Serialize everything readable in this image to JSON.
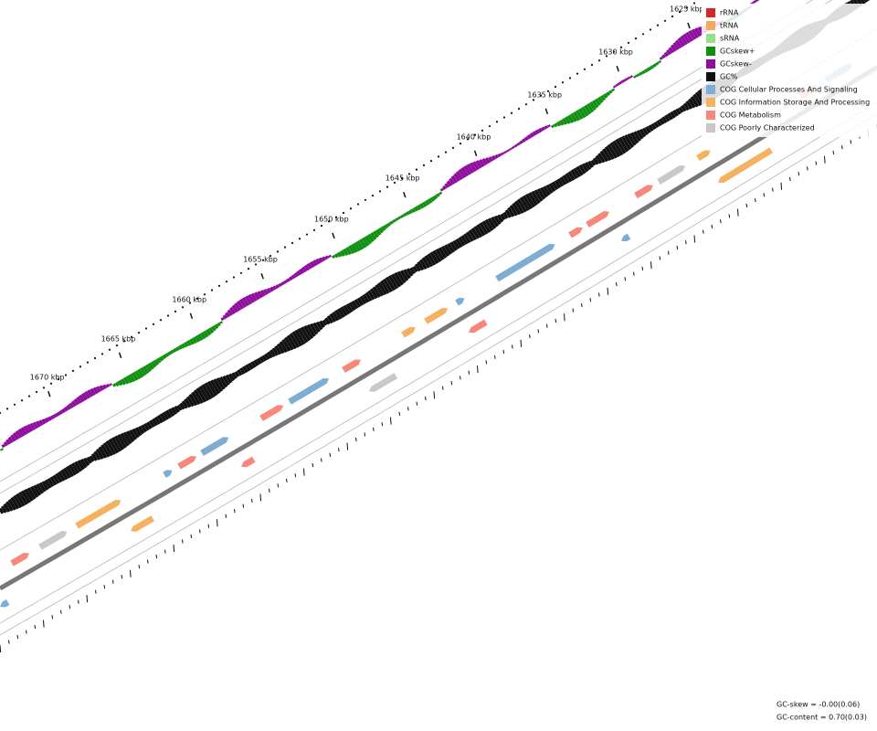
{
  "tick_labels": [
    "1625 kbp",
    "1630 kbp",
    "1635 kbp",
    "1640 kbp",
    "1645 kbp",
    "1650 kbp",
    "1655 kbp",
    "1660 kbp",
    "1665 kbp",
    "1670 kbp"
  ],
  "legend": [
    {
      "label": "rRNA",
      "color": "#d62728"
    },
    {
      "label": "tRNA",
      "color": "#f5a95b"
    },
    {
      "label": "sRNA",
      "color": "#98df8a"
    },
    {
      "label": "GCskew+",
      "color": "#109010"
    },
    {
      "label": "GCskew-",
      "color": "#8e0c9e"
    },
    {
      "label": "GC%",
      "color": "#111111"
    },
    {
      "label": "COG Cellular Processes And Signaling",
      "color": "#7eadd4"
    },
    {
      "label": "COG Information Storage And Processing",
      "color": "#f5b060"
    },
    {
      "label": "COG Metabolism",
      "color": "#f6877a"
    },
    {
      "label": "COG Poorly Characterized",
      "color": "#c8c8c8"
    }
  ],
  "footer": {
    "gc_skew": "GC-skew = -0.00(0.06)",
    "gc_content": "GC-content = 0.70(0.03)"
  }
}
